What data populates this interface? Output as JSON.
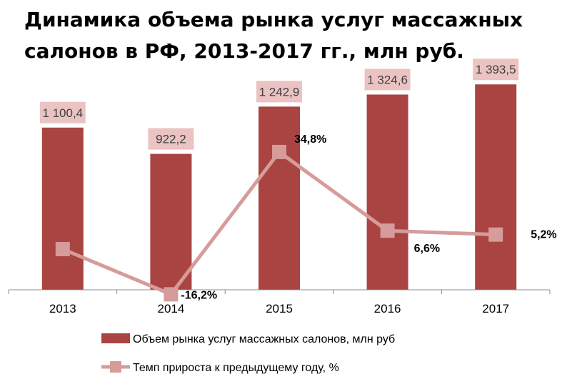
{
  "title": {
    "line1": "Динамика объема рынка услуг массажных",
    "line2": "салонов в РФ, 2013-2017 гг., млн руб."
  },
  "chart_data": {
    "type": "bar+line",
    "categories": [
      "2013",
      "2014",
      "2015",
      "2016",
      "2017"
    ],
    "series": [
      {
        "name": "Объем рынка услуг массажных салонов, млн руб",
        "type": "bar",
        "values": [
          1100.4,
          922.2,
          1242.9,
          1324.6,
          1393.5
        ],
        "labels": [
          "1 100,4",
          "922,2",
          "1 242,9",
          "1 324,6",
          "1 393,5"
        ],
        "color": "#A94442"
      },
      {
        "name": "Темп прироста к предыдущему году, %",
        "type": "line",
        "values": [
          null,
          -16.2,
          34.8,
          6.6,
          5.2
        ],
        "labels": [
          "",
          "-16,2%",
          "34,8%",
          "6,6%",
          "5,2%"
        ],
        "color": "#D69B9B"
      }
    ],
    "legend_position": "bottom",
    "grid": false
  },
  "colors": {
    "bar": "#A94442",
    "line": "#D69B9B",
    "label_box": "#EBC3C3",
    "axis": "#8C8C8C"
  }
}
